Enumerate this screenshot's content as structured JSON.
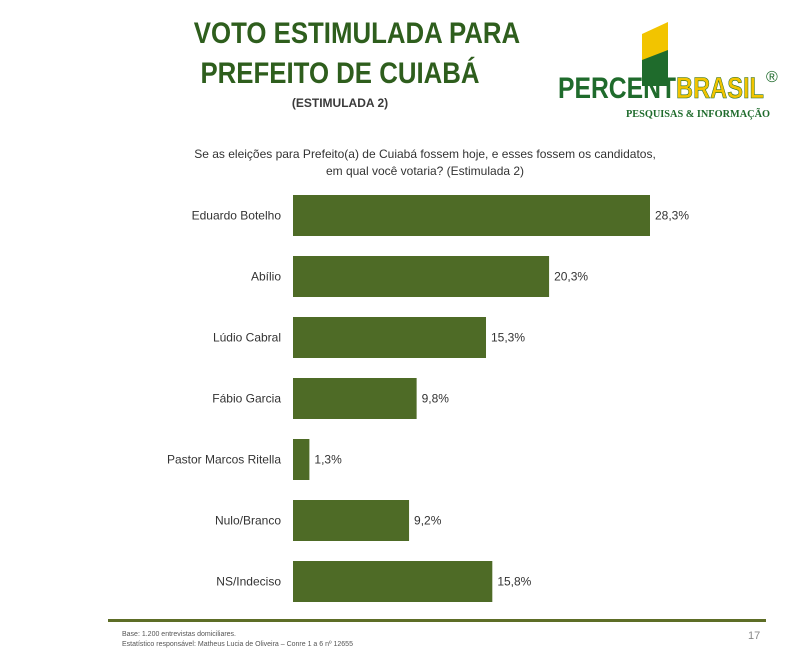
{
  "title": {
    "line1": "VOTO ESTIMULADA PARA",
    "line2": "PREFEITO DE CUIABÁ",
    "subtitle": "(ESTIMULADA 2)"
  },
  "logo": {
    "text_main_a": "PERCENT",
    "text_main_b": "BRASIL",
    "registered": "®",
    "tagline": "PESQUISAS & INFORMAÇÃO",
    "colors": {
      "green": "#1f6b2c",
      "yellow": "#f2c400"
    }
  },
  "question": "Se as eleições para Prefeito(a) de Cuiabá fossem hoje, e esses fossem os candidatos, em qual você votaria? (Estimulada 2)",
  "chart_data": {
    "type": "bar",
    "orientation": "horizontal",
    "categories": [
      "Eduardo Botelho",
      "Abílio",
      "Lúdio Cabral",
      "Fábio Garcia",
      "Pastor Marcos Ritella",
      "Nulo/Branco",
      "NS/Indeciso"
    ],
    "values": [
      28.3,
      20.3,
      15.3,
      9.8,
      1.3,
      9.2,
      15.8
    ],
    "value_labels": [
      "28,3%",
      "20,3%",
      "15,3%",
      "9,8%",
      "1,3%",
      "9,2%",
      "15,8%"
    ],
    "xlim": [
      0,
      28.3
    ],
    "grid": false,
    "bar_color": "#4e6b26"
  },
  "footer": {
    "note_line1": "Base: 1.200 entrevistas domiciliares.",
    "note_line2": "Estatístico responsável: Matheus Lucia de Oliveira – Conre 1 a 6 nº 12655",
    "page_number": "17"
  }
}
